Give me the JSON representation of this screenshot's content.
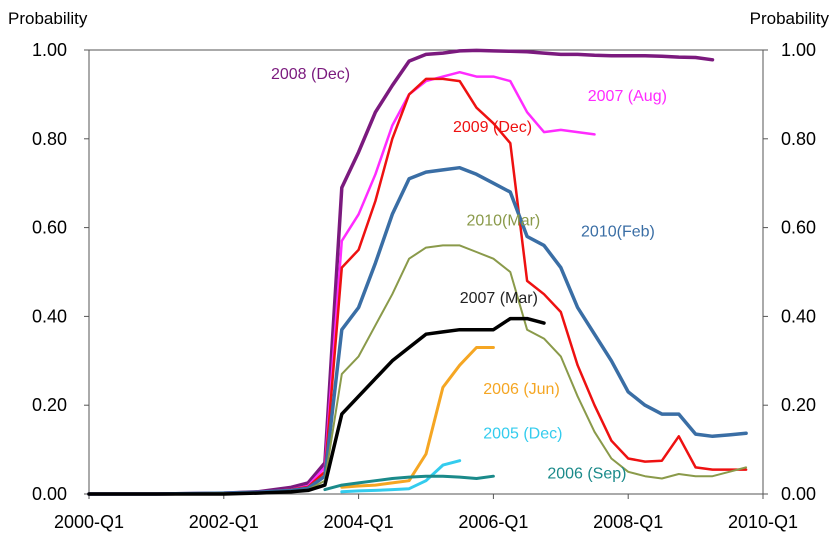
{
  "chart_data": {
    "type": "line",
    "title": "",
    "ylabel_left": "Probability",
    "ylabel_right": "Probability",
    "xlabel": "",
    "x_ticks": [
      "2000-Q1",
      "2002-Q1",
      "2004-Q1",
      "2006-Q1",
      "2008-Q1",
      "2010-Q1"
    ],
    "x_range": [
      2000.0,
      2010.0
    ],
    "y_ticks": [
      "0.00",
      "0.20",
      "0.40",
      "0.60",
      "0.80",
      "1.00"
    ],
    "ylim": [
      0,
      1
    ],
    "grid": false,
    "legend": "inline labels",
    "series": [
      {
        "name": "2008 (Dec)",
        "color": "#7b1a7e",
        "width": 3.5,
        "x": [
          2000.0,
          2001.0,
          2002.0,
          2002.5,
          2003.0,
          2003.25,
          2003.5,
          2003.75,
          2004.0,
          2004.25,
          2004.5,
          2004.75,
          2005.0,
          2005.25,
          2005.5,
          2005.75,
          2006.0,
          2006.25,
          2006.5,
          2006.75,
          2007.0,
          2007.25,
          2007.5,
          2007.75,
          2008.0,
          2008.25,
          2008.5,
          2008.75,
          2009.0,
          2009.25
        ],
        "y": [
          0.0,
          0.0,
          0.002,
          0.005,
          0.015,
          0.025,
          0.07,
          0.69,
          0.77,
          0.86,
          0.92,
          0.975,
          0.99,
          0.993,
          0.998,
          0.999,
          0.998,
          0.997,
          0.996,
          0.993,
          0.99,
          0.99,
          0.988,
          0.987,
          0.987,
          0.987,
          0.986,
          0.984,
          0.983,
          0.978
        ]
      },
      {
        "name": "2007 (Aug)",
        "color": "#ff2bff",
        "width": 2.5,
        "x": [
          2000.0,
          2001.0,
          2002.0,
          2002.5,
          2003.0,
          2003.25,
          2003.5,
          2003.75,
          2004.0,
          2004.25,
          2004.5,
          2004.75,
          2005.0,
          2005.25,
          2005.5,
          2005.75,
          2006.0,
          2006.25,
          2006.5,
          2006.75,
          2007.0,
          2007.25,
          2007.5
        ],
        "y": [
          0.0,
          0.0,
          0.002,
          0.004,
          0.01,
          0.018,
          0.06,
          0.57,
          0.63,
          0.72,
          0.83,
          0.9,
          0.93,
          0.94,
          0.95,
          0.94,
          0.94,
          0.93,
          0.86,
          0.815,
          0.82,
          0.815,
          0.81
        ]
      },
      {
        "name": "2009 (Dec)",
        "color": "#ee1111",
        "width": 2.5,
        "x": [
          2000.0,
          2001.0,
          2002.0,
          2002.5,
          2003.0,
          2003.25,
          2003.5,
          2003.75,
          2004.0,
          2004.25,
          2004.5,
          2004.75,
          2005.0,
          2005.25,
          2005.5,
          2005.75,
          2006.0,
          2006.25,
          2006.5,
          2006.75,
          2007.0,
          2007.25,
          2007.5,
          2007.75,
          2008.0,
          2008.25,
          2008.5,
          2008.75,
          2009.0,
          2009.25,
          2009.5,
          2009.75
        ],
        "y": [
          0.0,
          0.0,
          0.002,
          0.004,
          0.01,
          0.016,
          0.05,
          0.51,
          0.55,
          0.66,
          0.8,
          0.9,
          0.935,
          0.935,
          0.93,
          0.87,
          0.835,
          0.79,
          0.48,
          0.45,
          0.41,
          0.29,
          0.2,
          0.12,
          0.08,
          0.073,
          0.075,
          0.13,
          0.06,
          0.055,
          0.055,
          0.055
        ]
      },
      {
        "name": "2010(Feb)",
        "color": "#3a6ea5",
        "width": 3.5,
        "x": [
          2000.0,
          2001.0,
          2002.0,
          2002.5,
          2003.0,
          2003.25,
          2003.5,
          2003.75,
          2004.0,
          2004.25,
          2004.5,
          2004.75,
          2005.0,
          2005.25,
          2005.5,
          2005.75,
          2006.0,
          2006.25,
          2006.5,
          2006.75,
          2007.0,
          2007.25,
          2007.5,
          2007.75,
          2008.0,
          2008.25,
          2008.5,
          2008.75,
          2009.0,
          2009.25,
          2009.5,
          2009.75
        ],
        "y": [
          0.0,
          0.0,
          0.002,
          0.004,
          0.008,
          0.013,
          0.04,
          0.37,
          0.42,
          0.52,
          0.63,
          0.71,
          0.725,
          0.73,
          0.735,
          0.72,
          0.7,
          0.68,
          0.58,
          0.56,
          0.51,
          0.42,
          0.36,
          0.3,
          0.23,
          0.2,
          0.18,
          0.18,
          0.135,
          0.13,
          0.133,
          0.137
        ]
      },
      {
        "name": "2010(Mar)",
        "color": "#8a9a4a",
        "width": 2,
        "x": [
          2000.0,
          2001.0,
          2002.0,
          2002.5,
          2003.0,
          2003.25,
          2003.5,
          2003.75,
          2004.0,
          2004.25,
          2004.5,
          2004.75,
          2005.0,
          2005.25,
          2005.5,
          2005.75,
          2006.0,
          2006.25,
          2006.5,
          2006.75,
          2007.0,
          2007.25,
          2007.5,
          2007.75,
          2008.0,
          2008.25,
          2008.5,
          2008.75,
          2009.0,
          2009.25,
          2009.5,
          2009.75
        ],
        "y": [
          0.0,
          0.0,
          0.002,
          0.003,
          0.006,
          0.01,
          0.03,
          0.27,
          0.31,
          0.38,
          0.45,
          0.53,
          0.555,
          0.56,
          0.56,
          0.545,
          0.53,
          0.5,
          0.37,
          0.35,
          0.31,
          0.22,
          0.14,
          0.08,
          0.05,
          0.04,
          0.035,
          0.045,
          0.04,
          0.04,
          0.05,
          0.06
        ]
      },
      {
        "name": "2007 (Mar)",
        "color": "#000000",
        "width": 3.5,
        "x": [
          2000.0,
          2001.0,
          2002.0,
          2002.5,
          2003.0,
          2003.25,
          2003.5,
          2003.75,
          2004.0,
          2004.25,
          2004.5,
          2004.75,
          2005.0,
          2005.25,
          2005.5,
          2005.75,
          2006.0,
          2006.25,
          2006.5,
          2006.75
        ],
        "y": [
          0.0,
          0.0,
          0.0,
          0.002,
          0.005,
          0.008,
          0.02,
          0.18,
          0.22,
          0.26,
          0.3,
          0.33,
          0.36,
          0.365,
          0.37,
          0.37,
          0.37,
          0.395,
          0.395,
          0.385
        ]
      },
      {
        "name": "2006 (Jun)",
        "color": "#f5a623",
        "width": 3,
        "x": [
          2003.75,
          2004.0,
          2004.25,
          2004.5,
          2004.75,
          2005.0,
          2005.25,
          2005.5,
          2005.75,
          2006.0
        ],
        "y": [
          0.015,
          0.018,
          0.02,
          0.025,
          0.03,
          0.09,
          0.24,
          0.29,
          0.33,
          0.33
        ]
      },
      {
        "name": "2005 (Dec)",
        "color": "#33ccee",
        "width": 3,
        "x": [
          2003.75,
          2004.0,
          2004.25,
          2004.5,
          2004.75,
          2005.0,
          2005.25,
          2005.5
        ],
        "y": [
          0.005,
          0.007,
          0.008,
          0.01,
          0.012,
          0.03,
          0.065,
          0.075
        ]
      },
      {
        "name": "2006 (Sep)",
        "color": "#1a8a8a",
        "width": 3,
        "x": [
          2003.5,
          2003.75,
          2004.0,
          2004.25,
          2004.5,
          2004.75,
          2005.0,
          2005.25,
          2005.5,
          2005.75,
          2006.0
        ],
        "y": [
          0.01,
          0.02,
          0.025,
          0.03,
          0.035,
          0.038,
          0.04,
          0.04,
          0.038,
          0.035,
          0.04
        ]
      }
    ],
    "labels": [
      {
        "text": "2008 (Dec)",
        "color": "#7b1a7e",
        "x": 2002.7,
        "y": 0.935
      },
      {
        "text": "2007 (Aug)",
        "color": "#ff2bff",
        "x": 2007.4,
        "y": 0.885
      },
      {
        "text": "2009 (Dec)",
        "color": "#ee1111",
        "x": 2005.4,
        "y": 0.815
      },
      {
        "text": "2010(Feb)",
        "color": "#3a6ea5",
        "x": 2007.3,
        "y": 0.58
      },
      {
        "text": "2010(Mar)",
        "color": "#8a9a4a",
        "x": 2005.6,
        "y": 0.605
      },
      {
        "text": "2007 (Mar)",
        "color": "#222222",
        "x": 2005.5,
        "y": 0.43
      },
      {
        "text": "2006 (Jun)",
        "color": "#f5a623",
        "x": 2005.85,
        "y": 0.225
      },
      {
        "text": "2005 (Dec)",
        "color": "#33ccee",
        "x": 2005.85,
        "y": 0.125
      },
      {
        "text": "2006 (Sep)",
        "color": "#1a8a8a",
        "x": 2006.8,
        "y": 0.035
      }
    ]
  }
}
